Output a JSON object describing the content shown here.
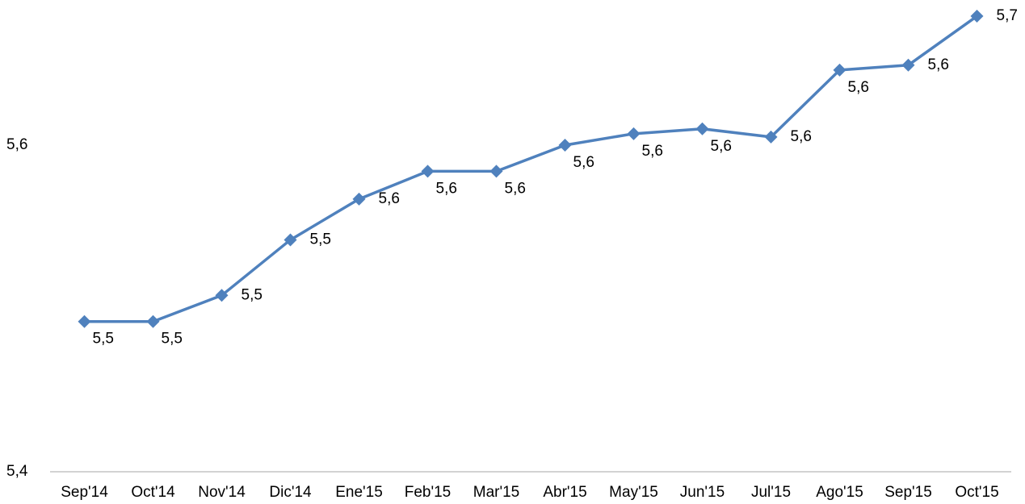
{
  "chart_data": {
    "type": "line",
    "categories": [
      "Sep'14",
      "Oct'14",
      "Nov'14",
      "Dic'14",
      "Ene'15",
      "Feb'15",
      "Mar'15",
      "Abr'15",
      "May'15",
      "Jun'15",
      "Jul'15",
      "Ago'15",
      "Sep'15",
      "Oct'15"
    ],
    "series": [
      {
        "color": "#4f81bd",
        "values": [
          5.492,
          5.492,
          5.508,
          5.542,
          5.567,
          5.584,
          5.584,
          5.6,
          5.607,
          5.61,
          5.605,
          5.646,
          5.649,
          5.679
        ],
        "value_labels": [
          "5,5",
          "5,5",
          "5,5",
          "5,5",
          "5,6",
          "5,6",
          "5,6",
          "5,6",
          "5,6",
          "5,6",
          "5,6",
          "5,6",
          "5,6",
          "5,7"
        ]
      }
    ],
    "ylim": [
      5.4,
      5.7
    ],
    "yticks": [
      {
        "value": 5.4,
        "label": "5,4"
      },
      {
        "value": 5.6,
        "label": "5,6"
      }
    ],
    "grid": false
  }
}
